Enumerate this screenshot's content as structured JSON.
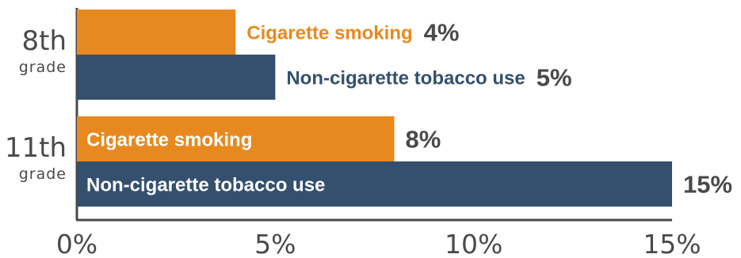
{
  "chart_data": {
    "type": "bar",
    "orientation": "horizontal",
    "categories": [
      {
        "label": "8th",
        "sublabel": "grade"
      },
      {
        "label": "11th",
        "sublabel": "grade"
      }
    ],
    "series": [
      {
        "name": "Cigarette smoking",
        "color": "#E8891F",
        "values": [
          4,
          8
        ],
        "value_labels": [
          "4%",
          "8%"
        ]
      },
      {
        "name": "Non-cigarette tobacco use",
        "color": "#34506E",
        "values": [
          5,
          15
        ],
        "value_labels": [
          "5%",
          "15%"
        ]
      }
    ],
    "xlim": [
      0,
      15
    ],
    "xticks": [
      0,
      5,
      10,
      15
    ],
    "xtick_labels": [
      "0%",
      "5%",
      "10%",
      "15%"
    ],
    "grid": false,
    "legend": "none"
  }
}
